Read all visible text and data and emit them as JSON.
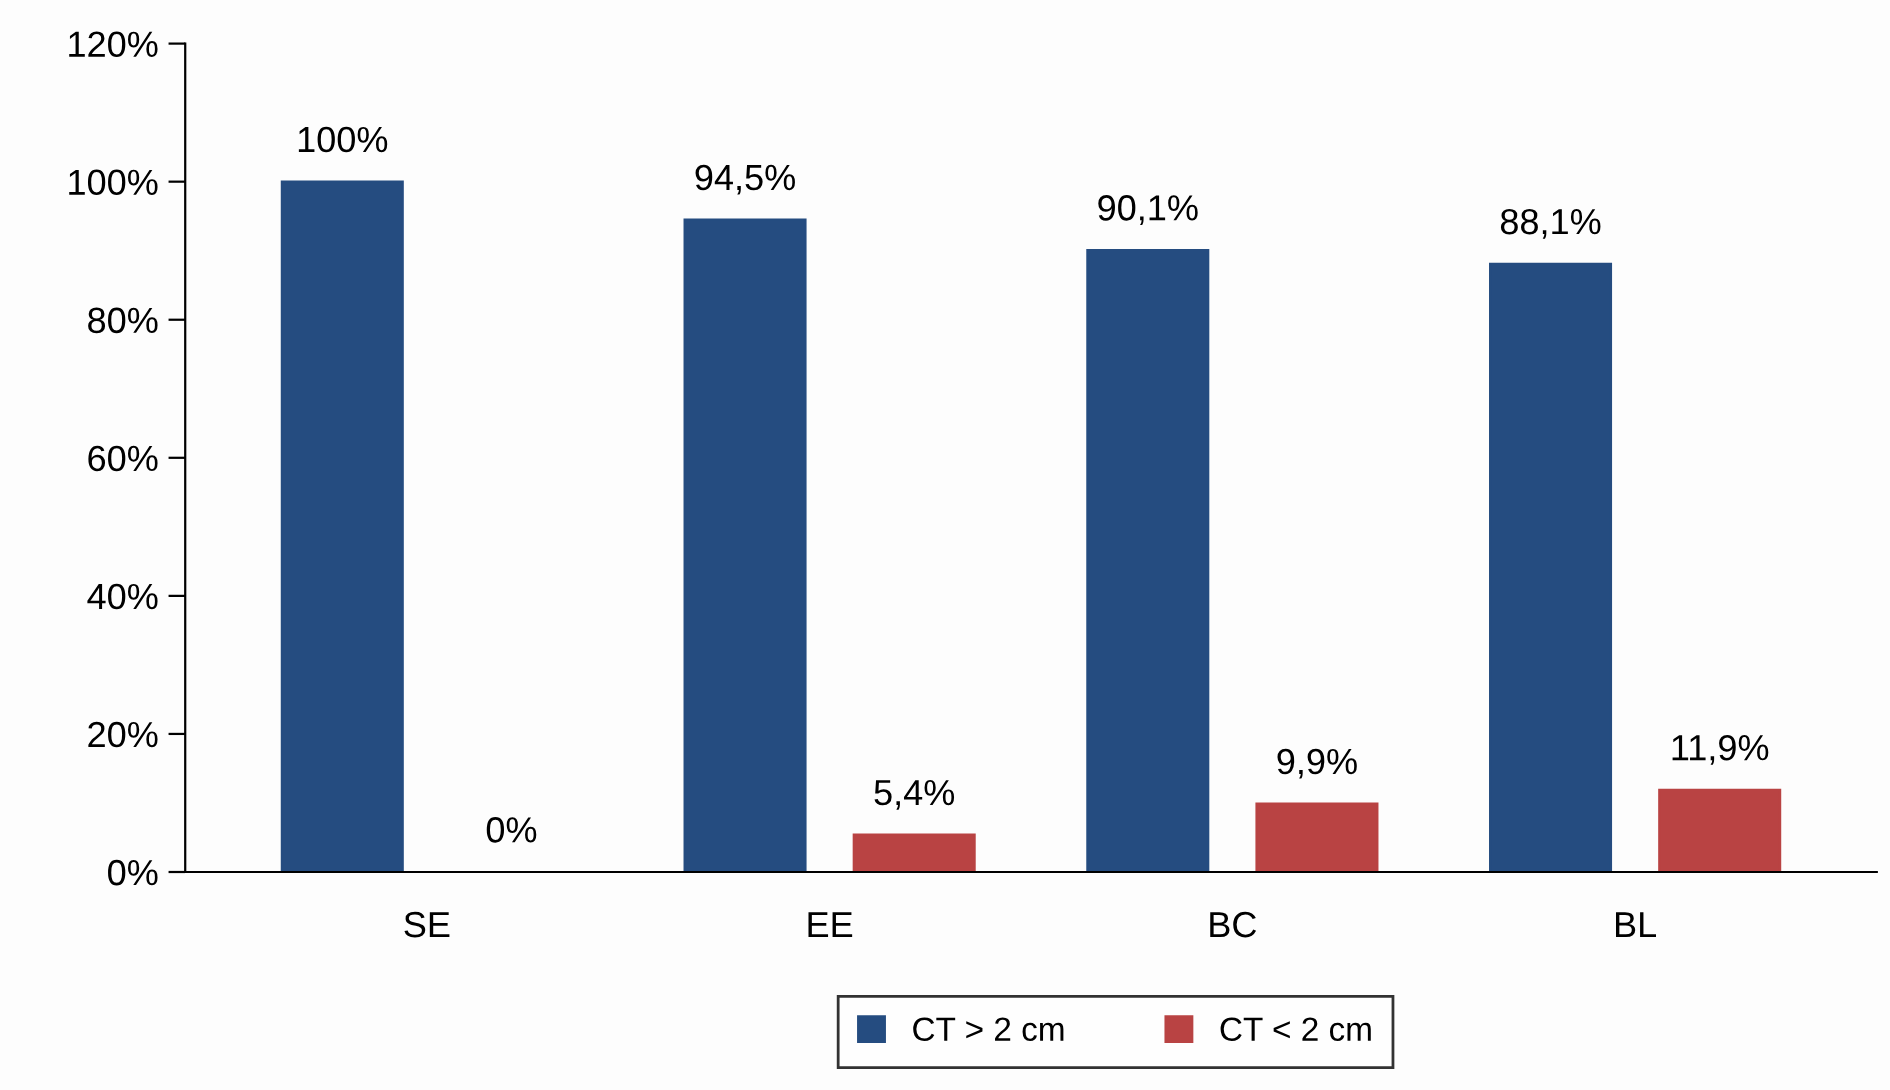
{
  "chart_data": {
    "type": "bar",
    "categories": [
      "SE",
      "EE",
      "BC",
      "BL"
    ],
    "series": [
      {
        "name": "CT > 2 cm",
        "color": "#254c80",
        "values": [
          100,
          94.5,
          90.1,
          88.1
        ],
        "value_labels": [
          "100%",
          "94,5%",
          "90,1%",
          "88,1%"
        ]
      },
      {
        "name": "CT < 2 cm",
        "color": "#b94343",
        "values": [
          0,
          5.4,
          9.9,
          11.9
        ],
        "value_labels": [
          "0%",
          "5,4%",
          "9,9%",
          "11,9%"
        ]
      }
    ],
    "ylim": [
      0,
      120
    ],
    "yticks": [
      {
        "value": 0,
        "label": "0%"
      },
      {
        "value": 20,
        "label": "20%"
      },
      {
        "value": 40,
        "label": "40%"
      },
      {
        "value": 60,
        "label": "60%"
      },
      {
        "value": 80,
        "label": "80%"
      },
      {
        "value": 100,
        "label": "100%"
      },
      {
        "value": 120,
        "label": "120%"
      }
    ],
    "grid": false,
    "legend": "bottom"
  }
}
